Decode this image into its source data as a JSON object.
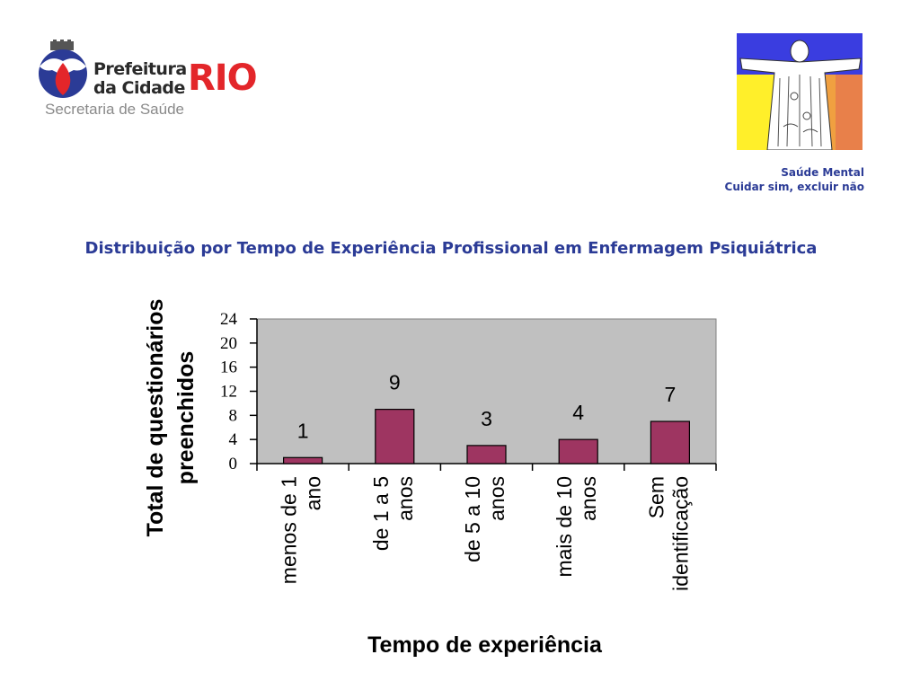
{
  "header": {
    "logo_line1": "Prefeitura",
    "logo_line2": "da Cidade",
    "logo_rio": "RIO",
    "logo_subtitle": "Secretaria de Saúde",
    "tagline_line1": "Saúde Mental",
    "tagline_line2": "Cuidar sim, excluir não"
  },
  "colors": {
    "title": "#2b3b96",
    "bar": "#9e3561",
    "plot_bg": "#c0c0c0",
    "logo_red": "#e3262a"
  },
  "chart_data": {
    "type": "bar",
    "title": "Distribuição por Tempo de Experiência Profissional em Enfermagem Psiquiátrica",
    "categories": [
      [
        "menos de 1",
        "ano"
      ],
      [
        "de 1 a 5",
        "anos"
      ],
      [
        "de 5 a 10",
        "anos"
      ],
      [
        "mais de 10",
        "anos"
      ],
      [
        "Sem",
        "identificação"
      ]
    ],
    "values": [
      1,
      9,
      3,
      4,
      7
    ],
    "data_labels": [
      "1",
      "9",
      "3",
      "4",
      "7"
    ],
    "xlabel": "Tempo de experiência",
    "ylabel": [
      "Total de questionários",
      "preenchidos"
    ],
    "ylim": [
      0,
      24
    ],
    "yticks": [
      0,
      4,
      8,
      12,
      16,
      20,
      24
    ],
    "grid": false,
    "legend": "none"
  }
}
